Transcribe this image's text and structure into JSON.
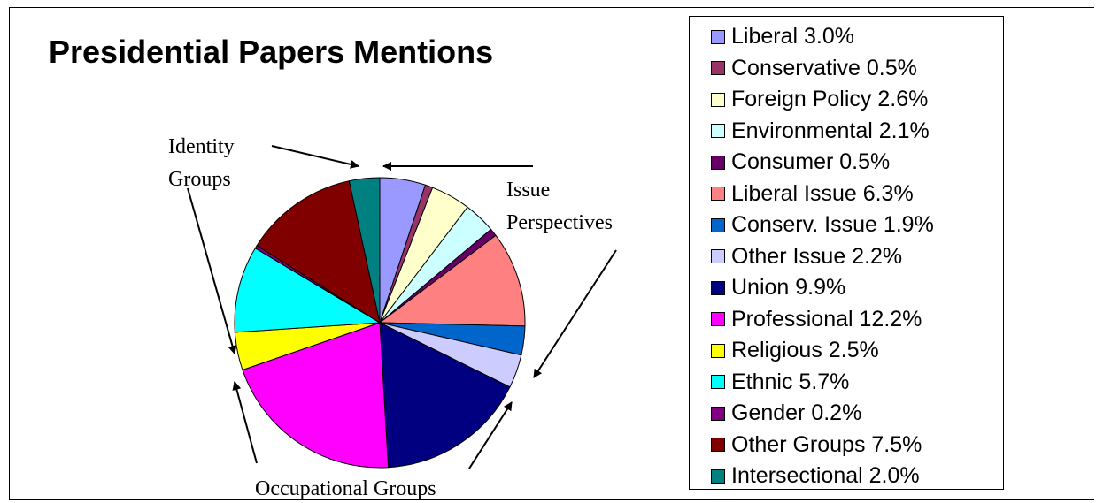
{
  "chart_data": {
    "type": "pie",
    "title": "Presidential Papers Mentions",
    "slices": [
      {
        "label": "Liberal 3.0%",
        "value": 3.0,
        "color": "#9999ff"
      },
      {
        "label": "Conservative 0.5%",
        "value": 0.5,
        "color": "#993366"
      },
      {
        "label": "Foreign Policy 2.6%",
        "value": 2.6,
        "color": "#ffffcc"
      },
      {
        "label": "Environmental 2.1%",
        "value": 2.1,
        "color": "#ccffff"
      },
      {
        "label": "Consumer 0.5%",
        "value": 0.5,
        "color": "#660066"
      },
      {
        "label": "Liberal Issue 6.3%",
        "value": 6.3,
        "color": "#ff8080"
      },
      {
        "label": "Conserv. Issue 1.9%",
        "value": 1.9,
        "color": "#0066cc"
      },
      {
        "label": "Other Issue 2.2%",
        "value": 2.2,
        "color": "#ccccff"
      },
      {
        "label": "Union 9.9%",
        "value": 9.9,
        "color": "#000080"
      },
      {
        "label": "Professional 12.2%",
        "value": 12.2,
        "color": "#ff00ff"
      },
      {
        "label": "Religious 2.5%",
        "value": 2.5,
        "color": "#ffff00"
      },
      {
        "label": "Ethnic 5.7%",
        "value": 5.7,
        "color": "#00ffff"
      },
      {
        "label": "Gender 0.2%",
        "value": 0.2,
        "color": "#800080"
      },
      {
        "label": "Other Groups 7.5%",
        "value": 7.5,
        "color": "#800000"
      },
      {
        "label": "Intersectional 2.0%",
        "value": 2.0,
        "color": "#008080"
      }
    ],
    "annotations": {
      "identity": [
        "Identity",
        "Groups"
      ],
      "issue": [
        "Issue",
        "Perspectives"
      ],
      "occupational": "Occupational Groups"
    },
    "legend_position": "right"
  }
}
